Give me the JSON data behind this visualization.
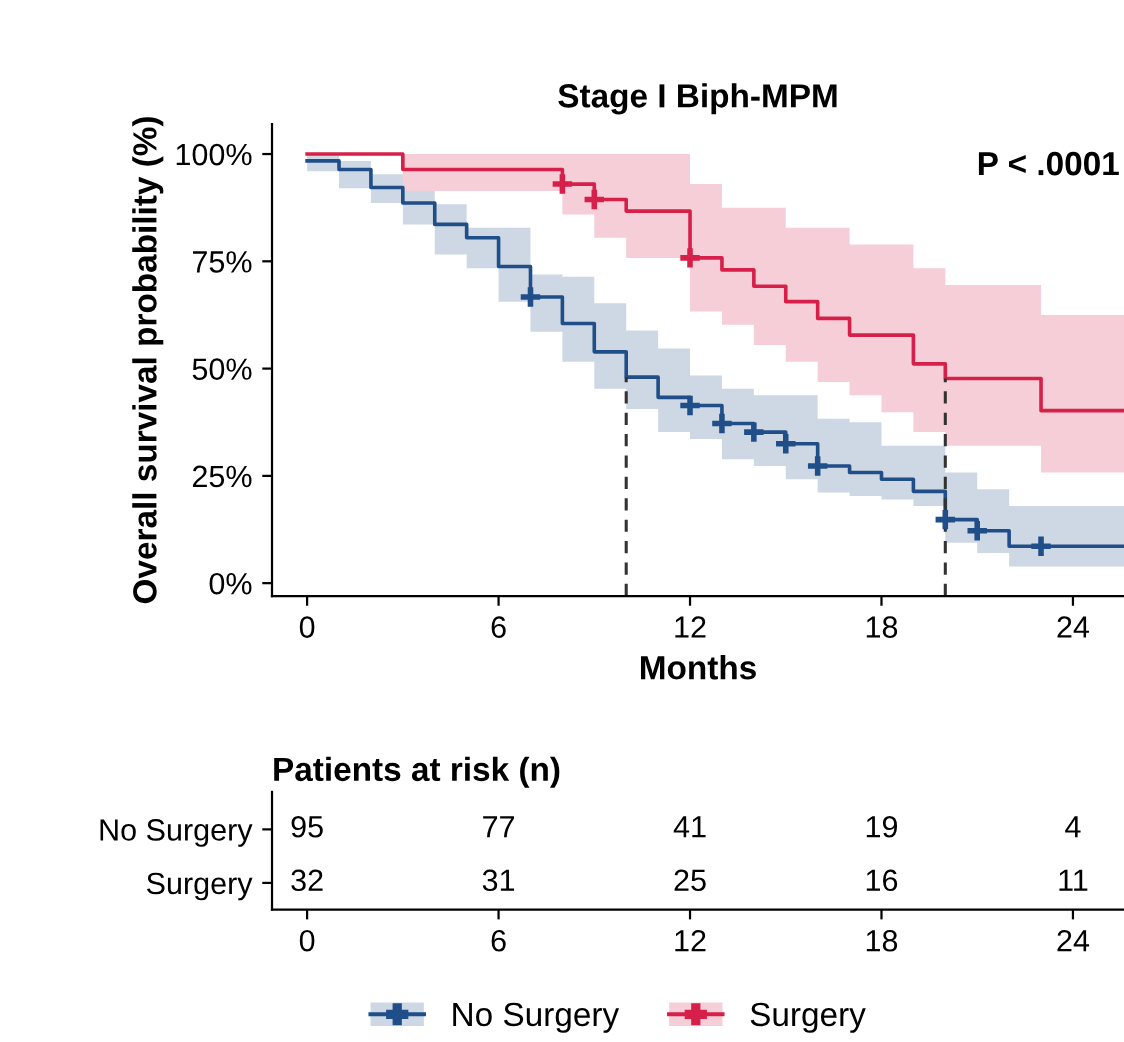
{
  "chart_data": [
    {
      "type": "step",
      "title": "Stage I Biph-MPM",
      "xlabel": "Months",
      "ylabel": "Overall survival probability (%)",
      "xlim": [
        -1.1,
        25.6
      ],
      "xticks": [
        0,
        6,
        12,
        18,
        24
      ],
      "ylim": [
        -3,
        107
      ],
      "yticks": [
        {
          "value": 0,
          "label": "0%"
        },
        {
          "value": 25,
          "label": "25%"
        },
        {
          "value": 50,
          "label": "50%"
        },
        {
          "value": 75,
          "label": "75%"
        },
        {
          "value": 100,
          "label": "100%"
        }
      ],
      "grid": false,
      "legend": "bottom",
      "marker": "none",
      "line_style": "solid",
      "annotations": [
        "P < .0001"
      ],
      "ref_lines": [
        {
          "axis": "x",
          "value": 10,
          "color": "#333333",
          "line_style": "dashed"
        },
        {
          "axis": "x",
          "value": 20,
          "color": "#333333",
          "line_style": "dashed"
        }
      ],
      "series": [
        {
          "name": "No Surgery",
          "color": "#1f4e89",
          "x": [
            0,
            1,
            2,
            3,
            4,
            5,
            6,
            7,
            8,
            9,
            10,
            11,
            12,
            13,
            14,
            15,
            16,
            17,
            18,
            19,
            20,
            21,
            22,
            25.6
          ],
          "values": [
            98.4,
            96.4,
            92.2,
            88.6,
            83.6,
            80.5,
            73.8,
            66.7,
            60.5,
            53.9,
            48,
            43.3,
            41.4,
            37.2,
            35.2,
            32.5,
            27.3,
            25.8,
            24.2,
            21.4,
            14.8,
            12.2,
            8.6,
            8.6
          ],
          "lower": [
            96,
            92,
            88.6,
            83.6,
            76.6,
            73.4,
            65.6,
            58.6,
            51.6,
            45.3,
            40.6,
            35.2,
            33.6,
            28.9,
            27.3,
            24.2,
            21.1,
            20.3,
            19.5,
            18,
            9.4,
            7,
            3.9,
            3.9
          ],
          "upper": [
            100,
            98.4,
            95.3,
            91.4,
            88.3,
            82.8,
            82.8,
            71.9,
            71.4,
            65.2,
            58.9,
            54.7,
            48.4,
            45.3,
            43.8,
            43.8,
            38.3,
            37.5,
            32,
            32,
            25.8,
            21.9,
            18,
            18
          ]
        },
        {
          "name": "Surgery",
          "color": "#d6204a",
          "x": [
            0,
            3,
            8,
            9,
            10,
            12,
            13,
            14,
            15,
            16,
            17,
            18,
            19,
            20,
            23,
            25.6
          ],
          "values": [
            100,
            96.4,
            93,
            89.4,
            86.7,
            75.8,
            73,
            69.2,
            65.6,
            61.7,
            57.8,
            57.8,
            51.1,
            47.7,
            40.2,
            40.2
          ],
          "lower": [
            100,
            91.4,
            85.9,
            80.5,
            75.8,
            63.3,
            60.2,
            55.5,
            51.6,
            46.9,
            43.8,
            39.8,
            35.2,
            32,
            25.8,
            25.8
          ],
          "upper": [
            100,
            100,
            100,
            100,
            100,
            93,
            87.5,
            87.5,
            82.8,
            82.8,
            78.9,
            78.9,
            73.4,
            69.5,
            62.5,
            62.5
          ]
        },
        {
          "type": "scatter",
          "marker": "cross",
          "color": "#1f4e89",
          "x": [
            7,
            12,
            13,
            14,
            15,
            16,
            20,
            21,
            23
          ],
          "values": [
            66.7,
            41.4,
            37.2,
            35.2,
            32.5,
            27.3,
            14.8,
            12.2,
            8.6
          ]
        },
        {
          "type": "scatter",
          "marker": "cross",
          "color": "#d6204a",
          "x": [
            8,
            9,
            12
          ],
          "values": [
            93,
            89.4,
            75.8
          ]
        }
      ]
    },
    {
      "type": "heatmap",
      "title": "Patients at risk (n)",
      "categories": [
        "0",
        "6",
        "12",
        "18",
        "24"
      ],
      "y_categories": [
        "No Surgery",
        "Surgery"
      ],
      "data_labels": true,
      "cells": [
        [
          95,
          77,
          41,
          19,
          4
        ],
        [
          32,
          31,
          25,
          16,
          11
        ]
      ]
    }
  ]
}
